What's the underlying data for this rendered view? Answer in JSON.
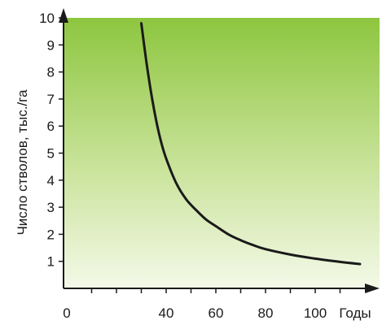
{
  "chart_data": {
    "type": "line",
    "title": "",
    "xlabel": "Годы",
    "ylabel": "Число стволов, тыс./га",
    "x_ticks": [
      "0",
      "40",
      "60",
      "80",
      "100"
    ],
    "y_ticks": [
      "1",
      "2",
      "3",
      "4",
      "5",
      "6",
      "7",
      "8",
      "9",
      "10"
    ],
    "xlim": [
      0,
      120
    ],
    "ylim": [
      0,
      10
    ],
    "grid": false,
    "series": [
      {
        "x": [
          30,
          32,
          34,
          36,
          38,
          40,
          44,
          48,
          52,
          56,
          60,
          65,
          70,
          75,
          80,
          90,
          100,
          110,
          118
        ],
        "y": [
          9.8,
          8.4,
          7.2,
          6.2,
          5.4,
          4.8,
          3.9,
          3.3,
          2.9,
          2.55,
          2.3,
          2.0,
          1.78,
          1.6,
          1.45,
          1.25,
          1.1,
          0.98,
          0.9
        ]
      }
    ],
    "colors": {
      "background_top": "#8dc63f",
      "background_bottom": "#f4f9e8",
      "line": "#1a1a1a",
      "axis": "#1a1a1a"
    }
  }
}
